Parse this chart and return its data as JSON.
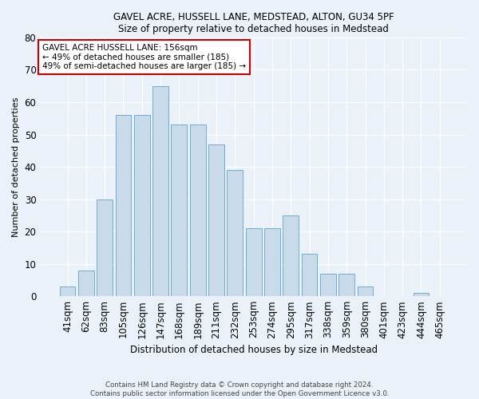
{
  "title1": "GAVEL ACRE, HUSSELL LANE, MEDSTEAD, ALTON, GU34 5PF",
  "title2": "Size of property relative to detached houses in Medstead",
  "xlabel": "Distribution of detached houses by size in Medstead",
  "ylabel": "Number of detached properties",
  "categories": [
    "41sqm",
    "62sqm",
    "83sqm",
    "105sqm",
    "126sqm",
    "147sqm",
    "168sqm",
    "189sqm",
    "211sqm",
    "232sqm",
    "253sqm",
    "274sqm",
    "295sqm",
    "317sqm",
    "338sqm",
    "359sqm",
    "380sqm",
    "401sqm",
    "423sqm",
    "444sqm",
    "465sqm"
  ],
  "values": [
    3,
    8,
    30,
    56,
    56,
    65,
    53,
    53,
    47,
    39,
    21,
    21,
    25,
    13,
    7,
    7,
    3,
    0,
    0,
    1,
    0
  ],
  "bar_color": "#c9daea",
  "bar_edge_color": "#6aaed6",
  "annotation_text": "GAVEL ACRE HUSSELL LANE: 156sqm\n← 49% of detached houses are smaller (185)\n49% of semi-detached houses are larger (185) →",
  "annotation_box_color": "#ffffff",
  "annotation_box_edge_color": "#cc0000",
  "ylim": [
    0,
    80
  ],
  "yticks": [
    0,
    10,
    20,
    30,
    40,
    50,
    60,
    70,
    80
  ],
  "footnote1": "Contains HM Land Registry data © Crown copyright and database right 2024.",
  "footnote2": "Contains public sector information licensed under the Open Government Licence v3.0.",
  "background_color": "#eaf1f8",
  "plot_bg_color": "#eaf1f8"
}
